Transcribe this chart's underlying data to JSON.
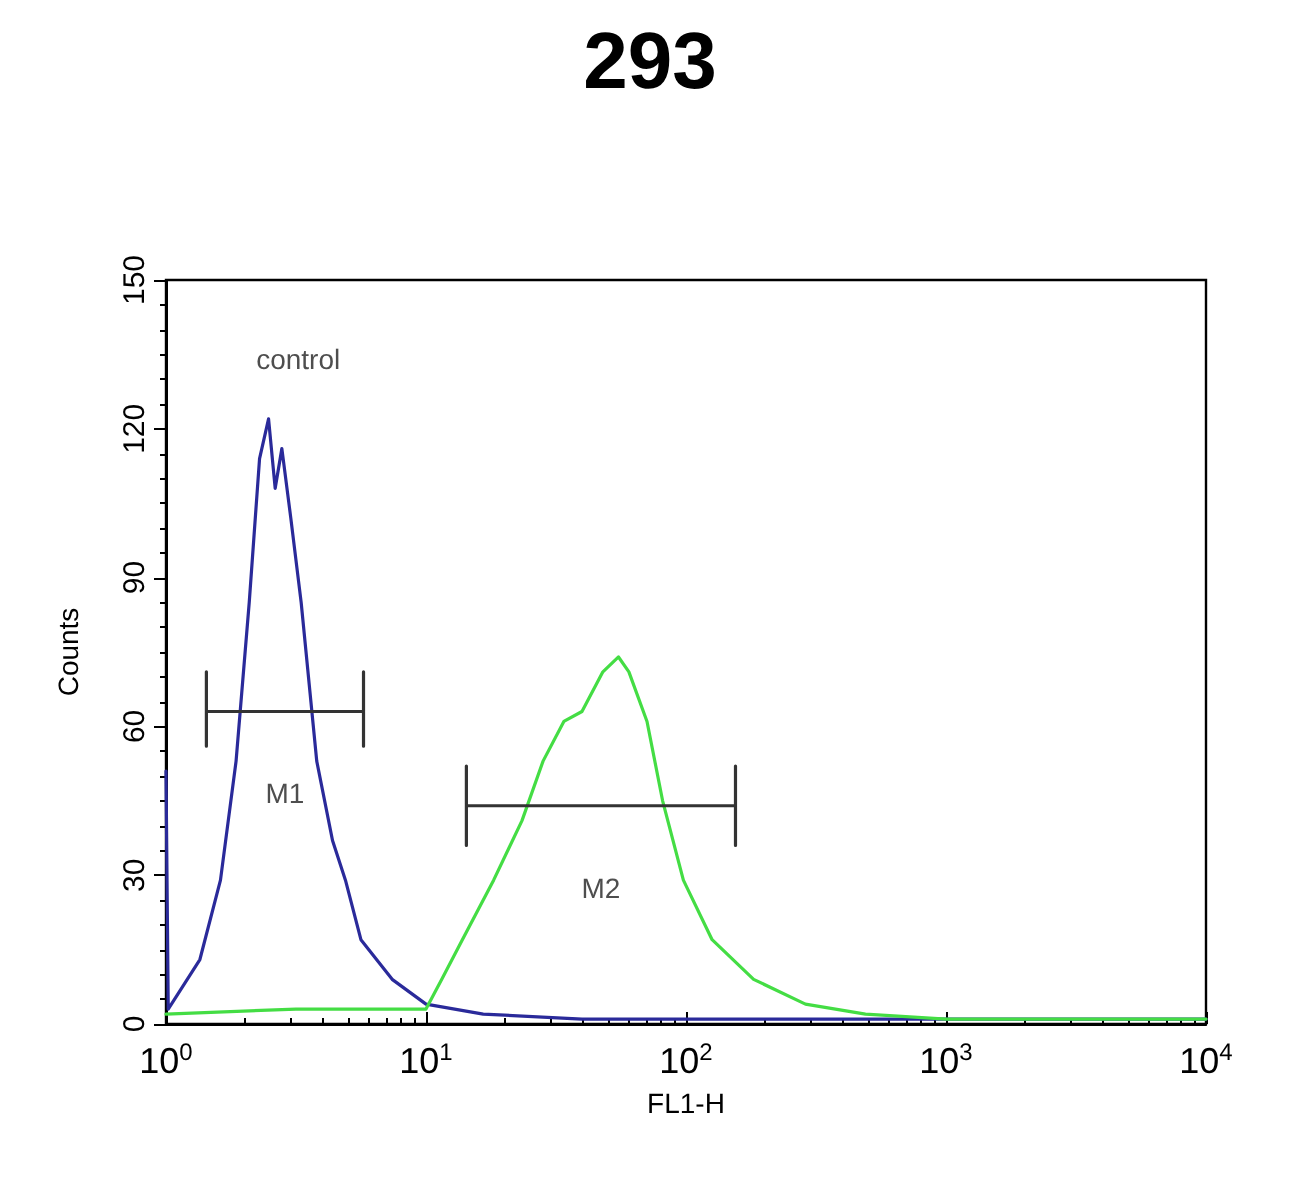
{
  "chart_data": {
    "type": "line",
    "title": "293",
    "xlabel": "FL1-H",
    "ylabel": "Counts",
    "log": "x",
    "xlim": [
      1,
      10000
    ],
    "ylim": [
      0,
      150
    ],
    "xticks": [
      {
        "value": 1,
        "label": "10$^{0}$"
      },
      {
        "value": 10,
        "label": "10$^{1}$"
      },
      {
        "value": 100,
        "label": "10$^{2}$"
      },
      {
        "value": 1000,
        "label": "10$^{3}$"
      },
      {
        "value": 10000,
        "label": "10$^{4}$"
      }
    ],
    "yticks": [
      0,
      30,
      60,
      90,
      120,
      150
    ],
    "grid": false,
    "marker": "none",
    "line_style": "solid",
    "series": [
      {
        "color": "#2a2a9a",
        "x": [
          1,
          1.02,
          1.35,
          1.62,
          1.86,
          2.09,
          2.29,
          2.48,
          2.63,
          2.79,
          3.02,
          3.31,
          3.8,
          4.37,
          4.9,
          5.62,
          7.41,
          10,
          16.6,
          39.8,
          100,
          316,
          1000,
          3160,
          10000
        ],
        "values": [
          51,
          3,
          13,
          29,
          53,
          85,
          114,
          122,
          108,
          116,
          102,
          85,
          53,
          37,
          29,
          17,
          9,
          4,
          2,
          1,
          1,
          1,
          1,
          1,
          1
        ]
      },
      {
        "color": "#44dd44",
        "x": [
          1,
          3.16,
          6.31,
          10,
          11.5,
          13.8,
          18.2,
          23.4,
          28.2,
          33.9,
          39.8,
          47.9,
          55,
          60.3,
          70.8,
          81.3,
          97.7,
          126,
          182,
          288,
          490,
          1000,
          10000
        ],
        "values": [
          2,
          3,
          3,
          3,
          9,
          17,
          29,
          41,
          53,
          61,
          63,
          71,
          74,
          71,
          61,
          45,
          29,
          17,
          9,
          4,
          2,
          1,
          1
        ]
      },
      {
        "type": "line",
        "color": "#333333",
        "x": [
          1.43,
          1.43,
          1.43,
          5.75,
          5.75,
          5.75
        ],
        "values": [
          71,
          56,
          63,
          63,
          71,
          56
        ]
      },
      {
        "type": "line",
        "color": "#333333",
        "x": [
          14.3,
          14.3,
          14.3,
          155,
          155,
          155
        ],
        "values": [
          52,
          36,
          44,
          44,
          52,
          36
        ]
      }
    ],
    "annotations": [
      "control",
      "M1",
      "M2"
    ]
  }
}
